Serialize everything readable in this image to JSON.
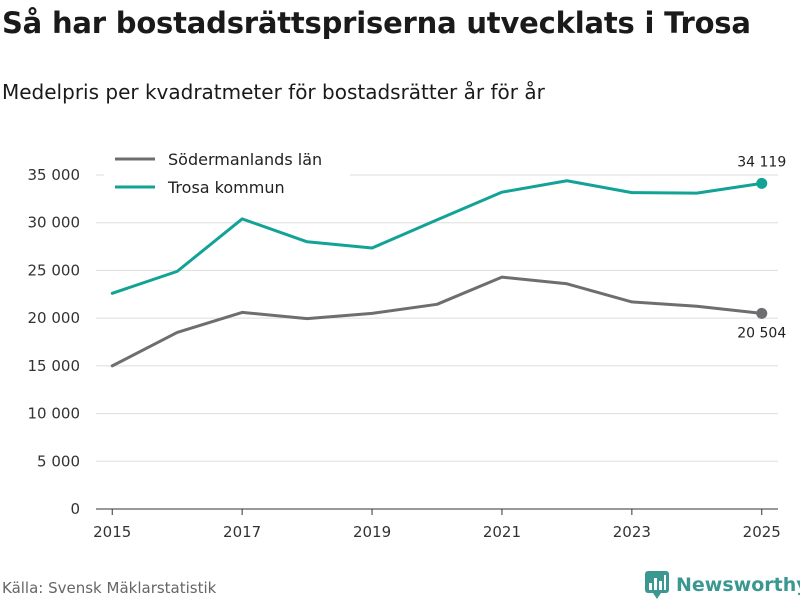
{
  "header": {
    "title": "Så har bostadsrättspriserna utvecklats i Trosa",
    "subtitle": "Medelpris per kvadratmeter för bostadsrätter år för år"
  },
  "footer": {
    "source": "Källa: Svensk Mäklarstatistik",
    "brand": "Newsworthy",
    "brand_icon": "newsworthy-logo-icon"
  },
  "chart_data": {
    "type": "line",
    "title": "Så har bostadsrättspriserna utvecklats i Trosa",
    "subtitle": "Medelpris per kvadratmeter för bostadsrätter år för år",
    "xlabel": "",
    "ylabel": "",
    "x": [
      2015,
      2016,
      2017,
      2018,
      2019,
      2020,
      2021,
      2022,
      2023,
      2024,
      2025
    ],
    "xticks": [
      "2015",
      "2017",
      "2019",
      "2021",
      "2023",
      "2025"
    ],
    "xlim": [
      2014.75,
      2025.25
    ],
    "ylim": [
      0,
      35000
    ],
    "yticks": [
      0,
      5000,
      10000,
      15000,
      20000,
      25000,
      30000,
      35000
    ],
    "ytick_labels": [
      "0",
      "5 000",
      "10 000",
      "15 000",
      "20 000",
      "25 000",
      "30 000",
      "35 000"
    ],
    "grid": true,
    "legend_position": "top-left",
    "series": [
      {
        "name": "Södermanlands län",
        "color": "#6e6e70",
        "values": [
          15000,
          18500,
          20600,
          19950,
          20500,
          21450,
          24300,
          23600,
          21700,
          21250,
          20504
        ],
        "end_label": "20 504"
      },
      {
        "name": "Trosa kommun",
        "color": "#12a396",
        "values": [
          22600,
          24900,
          30400,
          28000,
          27350,
          30300,
          33200,
          34400,
          33150,
          33100,
          34119
        ],
        "end_label": "34 119"
      }
    ]
  }
}
